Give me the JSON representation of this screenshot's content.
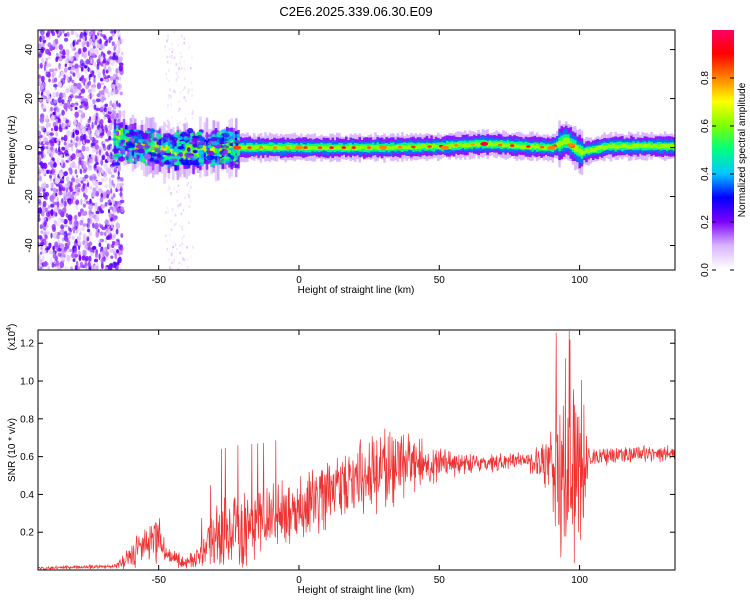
{
  "page_title": "C2E6.2025.339.06.30.E09",
  "chart_data": [
    {
      "type": "heatmap",
      "title": "C2E6.2025.339.06.30.E09",
      "xlabel": "Height of straight line (km)",
      "ylabel": "Frequency (Hz)",
      "xlim": [
        -93,
        134
      ],
      "ylim": [
        -50,
        48
      ],
      "x_ticks": [
        -50,
        0,
        50,
        100
      ],
      "y_ticks": [
        -40,
        -20,
        0,
        20,
        40
      ],
      "grid": false,
      "colorbar": {
        "label": "Normalized spectral amplitude",
        "range": [
          0,
          1
        ],
        "ticks": [
          0.0,
          0.2,
          0.4,
          0.6,
          0.8
        ],
        "tick_labels": [
          "0.0",
          "0.2",
          "0.4",
          "0.6",
          "0.8"
        ],
        "colors": [
          "#ffffff",
          "#d8b4ff",
          "#7b00ff",
          "#0000ff",
          "#00c8ff",
          "#00ff7f",
          "#7fff00",
          "#ffff00",
          "#ff8000",
          "#ff0000",
          "#ff0066"
        ]
      },
      "regions": [
        {
          "x_range": [
            -93,
            -63
          ],
          "freq_range": [
            -50,
            48
          ],
          "level": 0.12,
          "pattern": "speckle"
        },
        {
          "x_range": [
            -48,
            -38
          ],
          "freq_range": [
            -50,
            48
          ],
          "level": 0.05,
          "pattern": "sparse"
        },
        {
          "x_range": [
            -65,
            -22
          ],
          "freq_range": [
            -8,
            8
          ],
          "level": 0.3,
          "pattern": "turbulent"
        },
        {
          "x_range": [
            -22,
            134
          ],
          "freq_range": [
            -4,
            4
          ],
          "level": 0.45,
          "pattern": "band"
        }
      ],
      "ridge": [
        {
          "x": -65,
          "f": 4
        },
        {
          "x": -55,
          "f": 0
        },
        {
          "x": -45,
          "f": -2
        },
        {
          "x": -35,
          "f": -1
        },
        {
          "x": -22,
          "f": 0
        },
        {
          "x": 0,
          "f": 0
        },
        {
          "x": 30,
          "f": 0
        },
        {
          "x": 50,
          "f": 0.5
        },
        {
          "x": 66,
          "f": 1.5
        },
        {
          "x": 80,
          "f": 0.5
        },
        {
          "x": 90,
          "f": 0
        },
        {
          "x": 95,
          "f": 3
        },
        {
          "x": 100,
          "f": -2
        },
        {
          "x": 110,
          "f": 0.5
        },
        {
          "x": 134,
          "f": 0.5
        }
      ],
      "hot_spots": [
        {
          "x": -22,
          "f": 0,
          "level": 0.85
        },
        {
          "x": 0,
          "f": 0,
          "level": 0.8
        },
        {
          "x": 30,
          "f": 0,
          "level": 0.8
        },
        {
          "x": 52,
          "f": 0,
          "level": 0.8
        },
        {
          "x": 66,
          "f": 1.5,
          "level": 0.95
        },
        {
          "x": 90,
          "f": 0,
          "level": 0.8
        },
        {
          "x": 97,
          "f": 1,
          "level": 0.8
        }
      ]
    },
    {
      "type": "line",
      "xlabel": "Height of straight line (km)",
      "ylabel": "SNR (10 * v/v)",
      "y_multiplier": "(x10^4)",
      "xlim": [
        -93,
        134
      ],
      "ylim": [
        0,
        1.27
      ],
      "x_ticks": [
        -50,
        0,
        50,
        100
      ],
      "y_ticks": [
        0.2,
        0.4,
        0.6,
        0.8,
        1.0,
        1.2
      ],
      "color": "#ee3333",
      "grid": false,
      "envelope": [
        {
          "x": -93,
          "mean": 0.01,
          "spread": 0.01
        },
        {
          "x": -66,
          "mean": 0.02,
          "spread": 0.01
        },
        {
          "x": -62,
          "mean": 0.05,
          "spread": 0.05
        },
        {
          "x": -58,
          "mean": 0.1,
          "spread": 0.1
        },
        {
          "x": -50,
          "mean": 0.18,
          "spread": 0.12
        },
        {
          "x": -47,
          "mean": 0.07,
          "spread": 0.05
        },
        {
          "x": -40,
          "mean": 0.04,
          "spread": 0.04
        },
        {
          "x": -35,
          "mean": 0.08,
          "spread": 0.08
        },
        {
          "x": -28,
          "mean": 0.2,
          "spread": 0.2
        },
        {
          "x": -22,
          "mean": 0.22,
          "spread": 0.2
        },
        {
          "x": -10,
          "mean": 0.28,
          "spread": 0.18
        },
        {
          "x": 10,
          "mean": 0.4,
          "spread": 0.18
        },
        {
          "x": 25,
          "mean": 0.5,
          "spread": 0.2
        },
        {
          "x": 35,
          "mean": 0.58,
          "spread": 0.22
        },
        {
          "x": 45,
          "mean": 0.55,
          "spread": 0.12
        },
        {
          "x": 60,
          "mean": 0.56,
          "spread": 0.05
        },
        {
          "x": 80,
          "mean": 0.58,
          "spread": 0.04
        },
        {
          "x": 87,
          "mean": 0.56,
          "spread": 0.1
        },
        {
          "x": 92,
          "mean": 0.5,
          "spread": 0.35
        },
        {
          "x": 97,
          "mean": 0.55,
          "spread": 0.6
        },
        {
          "x": 101,
          "mean": 0.5,
          "spread": 0.55
        },
        {
          "x": 103,
          "mean": 0.6,
          "spread": 0.05
        },
        {
          "x": 134,
          "mean": 0.62,
          "spread": 0.04
        }
      ]
    }
  ]
}
